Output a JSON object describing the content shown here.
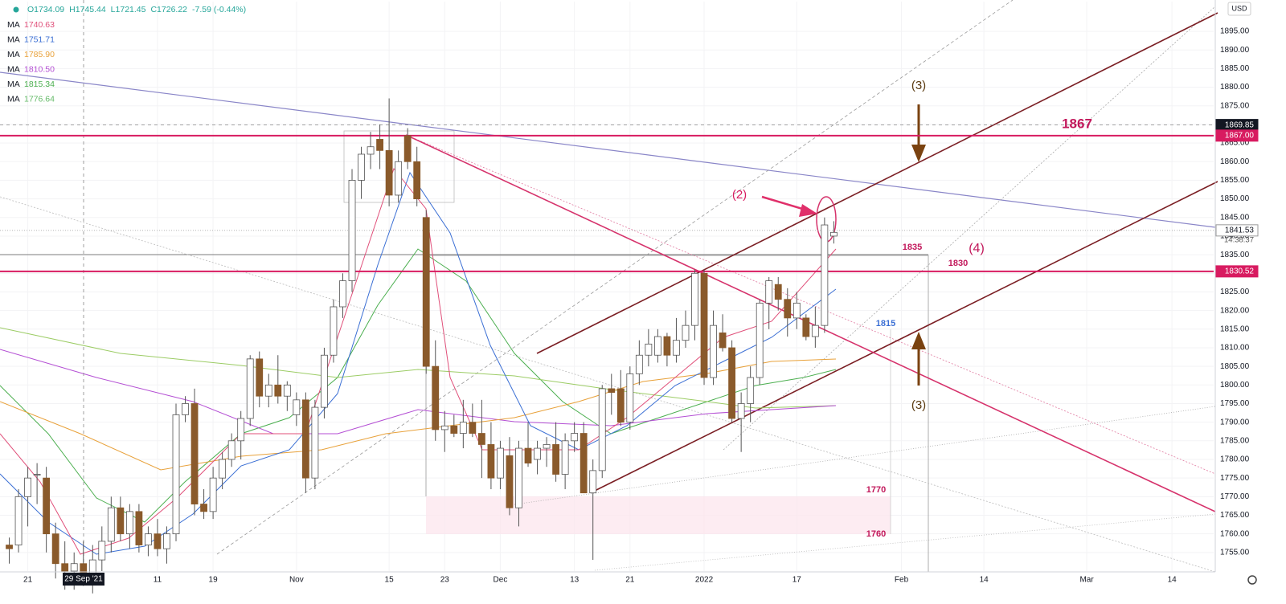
{
  "header": {
    "ohlc": [
      "O1734.09",
      "H1745.44",
      "L1721.45",
      "C1726.22",
      "-7.59 (-0.44%)"
    ]
  },
  "indicators": [
    {
      "name": "MA",
      "value": "1740.63",
      "color": "#e0507a"
    },
    {
      "name": "MA",
      "value": "1751.71",
      "color": "#3b6fd4"
    },
    {
      "name": "MA",
      "value": "1785.90",
      "color": "#e8a13a"
    },
    {
      "name": "MA",
      "value": "1810.50",
      "color": "#b44fd4"
    },
    {
      "name": "MA",
      "value": "1815.34",
      "color": "#4caf50"
    },
    {
      "name": "MA",
      "value": "1776.64",
      "color": "#66bb6a"
    }
  ],
  "currency": "USD",
  "crosshair_date": "29 Sep '21",
  "countdown": "14:38:37",
  "annotations": {
    "wave3_top": "(3)",
    "wave2": "(2)",
    "wave4": "(4)",
    "wave3_bottom": "(3)",
    "level_1867": "1867",
    "level_1835": "1835",
    "level_1830": "1830",
    "level_1815": "1815",
    "level_1770": "1770",
    "level_1760": "1760"
  },
  "chart_data": {
    "type": "candlestick",
    "up_color": "#ffffff",
    "down_color": "#8a5a2b",
    "outline_color": "#555555",
    "xlim": [
      -3,
      128
    ],
    "ylim": [
      1750,
      1903
    ],
    "xticks": [
      {
        "value": 0,
        "label": "21"
      },
      {
        "value": 14,
        "label": "11"
      },
      {
        "value": 20,
        "label": "19"
      },
      {
        "value": 29,
        "label": "Nov"
      },
      {
        "value": 39,
        "label": "15"
      },
      {
        "value": 45,
        "label": "23"
      },
      {
        "value": 51,
        "label": "Dec"
      },
      {
        "value": 59,
        "label": "13"
      },
      {
        "value": 65,
        "label": "21"
      },
      {
        "value": 73,
        "label": "2022"
      },
      {
        "value": 83,
        "label": "17"
      },
      {
        "value": 94.3,
        "label": "Feb"
      },
      {
        "value": 103.2,
        "label": "14"
      },
      {
        "value": 114.3,
        "label": "Mar"
      },
      {
        "value": 123.5,
        "label": "14"
      }
    ],
    "yticks": [
      {
        "value": 1755,
        "label": "1755.00"
      },
      {
        "value": 1760,
        "label": "1760.00"
      },
      {
        "value": 1765,
        "label": "1765.00"
      },
      {
        "value": 1770,
        "label": "1770.00"
      },
      {
        "value": 1775,
        "label": "1775.00"
      },
      {
        "value": 1780,
        "label": "1780.00"
      },
      {
        "value": 1785,
        "label": "1785.00"
      },
      {
        "value": 1790,
        "label": "1790.00"
      },
      {
        "value": 1795,
        "label": "1795.00"
      },
      {
        "value": 1800,
        "label": "1800.00"
      },
      {
        "value": 1805,
        "label": "1805.00"
      },
      {
        "value": 1810,
        "label": "1810.00"
      },
      {
        "value": 1815,
        "label": "1815.00"
      },
      {
        "value": 1820,
        "label": "1820.00"
      },
      {
        "value": 1825,
        "label": "1825.00"
      },
      {
        "value": 1830,
        "label": "1830.00"
      },
      {
        "value": 1835,
        "label": "1835.00"
      },
      {
        "value": 1840,
        "label": "1840.00"
      },
      {
        "value": 1845,
        "label": "1845.00"
      },
      {
        "value": 1850,
        "label": "1850.00"
      },
      {
        "value": 1855,
        "label": "1855.00"
      },
      {
        "value": 1860,
        "label": "1860.00"
      },
      {
        "value": 1865,
        "label": "1865.00"
      },
      {
        "value": 1870,
        "label": "1870.00"
      },
      {
        "value": 1875,
        "label": "1875.00"
      },
      {
        "value": 1880,
        "label": "1880.00"
      },
      {
        "value": 1885,
        "label": "1885.00"
      },
      {
        "value": 1890,
        "label": "1890.00"
      },
      {
        "value": 1895,
        "label": "1895.00"
      }
    ],
    "price_tags": [
      {
        "value": 1869.85,
        "label": "1869.85",
        "color": "#131722",
        "text_color": "#ffffff"
      },
      {
        "value": 1867,
        "label": "1867.00",
        "color": "#d81b60",
        "text_color": "#ffffff"
      },
      {
        "value": 1841.53,
        "label": "1841.53",
        "color": "#ffffff",
        "text_color": "#131722"
      },
      {
        "value": 1830.52,
        "label": "1830.52",
        "color": "#d81b60",
        "text_color": "#ffffff"
      }
    ],
    "x": [
      -2,
      -1,
      0,
      1,
      2,
      3,
      4,
      5,
      6,
      7,
      8,
      9,
      10,
      11,
      12,
      13,
      14,
      15,
      16,
      17,
      18,
      19,
      20,
      21,
      22,
      23,
      24,
      25,
      26,
      27,
      28,
      29,
      30,
      31,
      32,
      33,
      34,
      35,
      36,
      37,
      38,
      39,
      40,
      41,
      42,
      43,
      44,
      45,
      46,
      47,
      48,
      49,
      50,
      51,
      52,
      53,
      54,
      55,
      56,
      57,
      58,
      59,
      60,
      61,
      62,
      63,
      64,
      65,
      66,
      67,
      68,
      69,
      70,
      71,
      72,
      73,
      74,
      75,
      76,
      77,
      78,
      79,
      80,
      81,
      82,
      83,
      84,
      85,
      86,
      87
    ],
    "open": [
      1757,
      1757,
      1770,
      1776,
      1775,
      1760,
      1752,
      1750,
      1752,
      1749,
      1753,
      1758,
      1767,
      1760,
      1766,
      1757,
      1760,
      1756,
      1760,
      1792,
      1795,
      1768,
      1766,
      1775,
      1780,
      1785,
      1791,
      1807,
      1797,
      1800,
      1797,
      1792,
      1796,
      1775,
      1794,
      1808,
      1821,
      1828,
      1855,
      1862,
      1866,
      1863,
      1851,
      1867,
      1860,
      1845,
      1805,
      1788,
      1789,
      1787,
      1790,
      1787,
      1784,
      1775,
      1781,
      1767,
      1783,
      1780,
      1783,
      1784,
      1776,
      1785,
      1787,
      1771,
      1777,
      1799,
      1799,
      1790,
      1803,
      1808,
      1808,
      1813,
      1808,
      1812,
      1816,
      1830,
      1802,
      1814,
      1810,
      1791,
      1795,
      1802,
      1822,
      1827,
      1823,
      1818,
      1818,
      1813,
      1816,
      1840
    ],
    "high": [
      1759,
      1772,
      1778,
      1779,
      1778,
      1763,
      1758,
      1755,
      1758,
      1757,
      1762,
      1770,
      1770,
      1768,
      1768,
      1762,
      1764,
      1762,
      1795,
      1797,
      1799,
      1772,
      1778,
      1782,
      1787,
      1793,
      1808,
      1809,
      1803,
      1808,
      1801,
      1798,
      1798,
      1796,
      1810,
      1823,
      1830,
      1858,
      1864,
      1868,
      1870,
      1877,
      1863,
      1869,
      1864,
      1847,
      1812,
      1793,
      1792,
      1796,
      1795,
      1796,
      1790,
      1785,
      1786,
      1785,
      1790,
      1785,
      1786,
      1790,
      1787,
      1790,
      1790,
      1780,
      1800,
      1803,
      1804,
      1805,
      1812,
      1815,
      1815,
      1814,
      1818,
      1820,
      1831,
      1831,
      1820,
      1819,
      1812,
      1798,
      1805,
      1823,
      1829,
      1829,
      1826,
      1825,
      1819,
      1821,
      1845,
      1844
    ],
    "low": [
      1752,
      1755,
      1762,
      1768,
      1755,
      1748,
      1745,
      1745,
      1746,
      1744,
      1750,
      1755,
      1758,
      1756,
      1755,
      1754,
      1754,
      1752,
      1758,
      1790,
      1765,
      1764,
      1764,
      1772,
      1778,
      1780,
      1789,
      1794,
      1794,
      1795,
      1793,
      1789,
      1771,
      1772,
      1791,
      1806,
      1818,
      1825,
      1850,
      1858,
      1858,
      1848,
      1849,
      1858,
      1848,
      1803,
      1785,
      1782,
      1786,
      1783,
      1786,
      1775,
      1772,
      1772,
      1765,
      1762,
      1778,
      1776,
      1778,
      1774,
      1772,
      1782,
      1771,
      1753,
      1775,
      1792,
      1789,
      1788,
      1800,
      1805,
      1806,
      1805,
      1806,
      1810,
      1812,
      1800,
      1800,
      1809,
      1790,
      1782,
      1790,
      1800,
      1815,
      1820,
      1813,
      1815,
      1812,
      1810,
      1814,
      1838
    ],
    "close": [
      1756,
      1770,
      1775,
      1776,
      1760,
      1752,
      1750,
      1752,
      1749,
      1753,
      1758,
      1767,
      1760,
      1766,
      1757,
      1760,
      1756,
      1760,
      1792,
      1795,
      1768,
      1766,
      1775,
      1780,
      1785,
      1791,
      1807,
      1797,
      1800,
      1797,
      1800,
      1796,
      1775,
      1794,
      1808,
      1821,
      1828,
      1855,
      1862,
      1864,
      1863,
      1851,
      1860,
      1860,
      1850,
      1805,
      1788,
      1789,
      1787,
      1790,
      1787,
      1784,
      1775,
      1783,
      1767,
      1783,
      1779,
      1783,
      1784,
      1776,
      1785,
      1787,
      1771,
      1777,
      1799,
      1798,
      1790,
      1803,
      1808,
      1811,
      1813,
      1808,
      1812,
      1816,
      1830,
      1802,
      1816,
      1810,
      1791,
      1795,
      1802,
      1822,
      1828,
      1823,
      1818,
      1822,
      1813,
      1816,
      1843,
      1841
    ]
  }
}
